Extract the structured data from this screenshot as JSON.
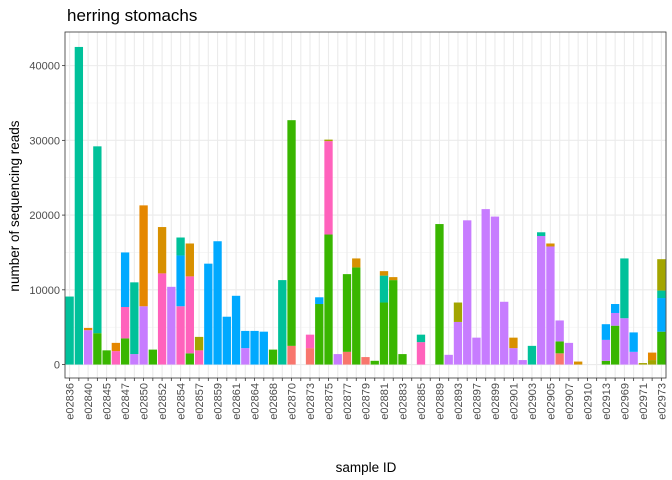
{
  "chart_data": {
    "type": "bar",
    "stacked": true,
    "title": "herring stomachs",
    "xlabel": "sample ID",
    "ylabel": "number  of sequencing reads",
    "ylim": [
      -1800,
      44500
    ],
    "yticks": [
      0,
      10000,
      20000,
      30000,
      40000
    ],
    "ytick_labels": [
      "0",
      "10000",
      "20000",
      "30000",
      "40000"
    ],
    "grid": true,
    "legend": "none",
    "categories": [
      "e02836",
      "e02837",
      "e02840",
      "e02844",
      "e02845",
      "e02846",
      "e02847",
      "e02849",
      "e02850",
      "e02851",
      "e02852",
      "e02853",
      "e02854",
      "e02855",
      "e02857",
      "e02858",
      "e02859",
      "e02860",
      "e02861",
      "e02863",
      "e02864",
      "e02865",
      "e02868",
      "e02869",
      "e02870",
      "e02872",
      "e02873",
      "e02874",
      "e02875",
      "e02876",
      "e02877",
      "e02878",
      "e02879",
      "e02880",
      "e02881",
      "e02882",
      "e02883",
      "e02884",
      "e02885",
      "e02888",
      "e02889",
      "e02892",
      "e02893",
      "e02895",
      "e02897",
      "e02898",
      "e02899",
      "e02900",
      "e02901",
      "e02902",
      "e02903",
      "e02904",
      "e02905",
      "e02906",
      "e02907",
      "e02909",
      "e02910",
      "e02911",
      "e02913",
      "e02914",
      "e02969",
      "e02970",
      "e02971",
      "e02972",
      "e02973"
    ],
    "x_tick_labels": [
      "e02836",
      "e02840",
      "e02845",
      "e02847",
      "e02850",
      "e02852",
      "e02854",
      "e02857",
      "e02859",
      "e02861",
      "e02864",
      "e02868",
      "e02870",
      "e02873",
      "e02875",
      "e02877",
      "e02879",
      "e02881",
      "e02883",
      "e02885",
      "e02889",
      "e02893",
      "e02897",
      "e02899",
      "e02901",
      "e02903",
      "e02905",
      "e02907",
      "e02910",
      "e02913",
      "e02969",
      "e02971",
      "e02973"
    ],
    "segment_order": [
      "salmon",
      "green",
      "pink",
      "purple",
      "blue",
      "teal",
      "olive",
      "orange",
      "mustard"
    ],
    "series": [
      {
        "color": "#F8766D",
        "values": [
          0,
          0,
          0,
          0,
          0,
          0,
          0,
          0,
          0,
          0,
          0,
          0,
          0,
          0,
          0,
          0,
          0,
          0,
          0,
          0,
          0,
          0,
          0,
          0,
          2500,
          0,
          2200,
          0,
          0,
          0,
          1700,
          0,
          1000,
          0,
          0,
          0,
          0,
          0,
          0,
          0,
          0,
          0,
          0,
          0,
          0,
          0,
          0,
          0,
          0,
          0,
          0,
          0,
          0,
          1500,
          0,
          0,
          0,
          0,
          0,
          0,
          0,
          0,
          0,
          0,
          0
        ]
      },
      {
        "color": "#39B600",
        "values": [
          0,
          0,
          0,
          4200,
          1900,
          0,
          3500,
          0,
          0,
          2000,
          0,
          0,
          0,
          1500,
          0,
          0,
          0,
          0,
          0,
          0,
          0,
          0,
          2000,
          0,
          30200,
          0,
          0,
          8100,
          17400,
          0,
          10400,
          13000,
          0,
          500,
          8300,
          11300,
          1400,
          0,
          0,
          0,
          18800,
          0,
          0,
          0,
          0,
          0,
          0,
          0,
          0,
          0,
          0,
          0,
          0,
          1600,
          0,
          0,
          0,
          0,
          500,
          5200,
          0,
          0,
          0,
          0,
          4400
        ]
      },
      {
        "color": "#FF62BC",
        "values": [
          0,
          0,
          0,
          0,
          0,
          1800,
          4200,
          0,
          0,
          0,
          12200,
          0,
          7800,
          10300,
          1900,
          0,
          0,
          0,
          0,
          0,
          0,
          0,
          0,
          0,
          0,
          0,
          1800,
          0,
          12500,
          0,
          0,
          0,
          0,
          0,
          0,
          0,
          0,
          0,
          3000,
          0,
          0,
          0,
          0,
          0,
          0,
          0,
          0,
          0,
          0,
          0,
          0,
          0,
          0,
          0,
          0,
          0,
          0,
          0,
          0,
          0,
          0,
          0,
          0,
          0,
          0
        ]
      },
      {
        "color": "#C77CFF",
        "values": [
          0,
          0,
          4600,
          0,
          0,
          0,
          0,
          1400,
          7800,
          0,
          0,
          10400,
          0,
          0,
          0,
          0,
          0,
          0,
          0,
          2200,
          0,
          0,
          0,
          0,
          0,
          0,
          0,
          0,
          0,
          1400,
          0,
          0,
          0,
          0,
          0,
          0,
          0,
          0,
          0,
          0,
          0,
          1300,
          5700,
          19300,
          3600,
          20800,
          19800,
          8400,
          2200,
          600,
          0,
          17200,
          15800,
          2800,
          2900,
          0,
          0,
          0,
          2800,
          1700,
          6200,
          1700,
          0,
          0,
          0
        ]
      },
      {
        "color": "#00A9FF",
        "values": [
          0,
          0,
          0,
          0,
          0,
          0,
          7300,
          0,
          0,
          0,
          0,
          0,
          6800,
          0,
          0,
          13500,
          16500,
          6400,
          9200,
          2300,
          4500,
          4400,
          0,
          0,
          0,
          0,
          0,
          900,
          0,
          0,
          0,
          0,
          0,
          0,
          0,
          0,
          0,
          0,
          0,
          0,
          0,
          0,
          0,
          0,
          0,
          0,
          0,
          0,
          0,
          0,
          0,
          0,
          0,
          0,
          0,
          0,
          0,
          0,
          2100,
          1200,
          0,
          2600,
          0,
          0,
          4500
        ]
      },
      {
        "color": "#00C19A",
        "values": [
          9100,
          42500,
          0,
          25000,
          0,
          0,
          0,
          9600,
          0,
          0,
          0,
          0,
          2400,
          0,
          0,
          0,
          0,
          0,
          0,
          0,
          0,
          0,
          0,
          11300,
          0,
          0,
          0,
          0,
          0,
          0,
          0,
          0,
          0,
          0,
          3600,
          0,
          0,
          0,
          1000,
          0,
          0,
          0,
          0,
          0,
          0,
          0,
          0,
          0,
          0,
          0,
          2500,
          500,
          0,
          0,
          0,
          0,
          0,
          0,
          0,
          0,
          8000,
          0,
          0,
          0,
          1000
        ]
      },
      {
        "color": "#A3A500",
        "values": [
          0,
          0,
          0,
          0,
          0,
          0,
          0,
          0,
          0,
          0,
          0,
          0,
          0,
          0,
          1800,
          0,
          0,
          0,
          0,
          0,
          0,
          0,
          0,
          0,
          0,
          0,
          0,
          0,
          200,
          0,
          0,
          0,
          0,
          0,
          0,
          0,
          0,
          0,
          0,
          0,
          0,
          0,
          2600,
          0,
          0,
          0,
          0,
          0,
          0,
          0,
          0,
          0,
          0,
          0,
          0,
          0,
          0,
          0,
          0,
          0,
          0,
          0,
          200,
          600,
          4200
        ]
      },
      {
        "color": "#E58700",
        "values": [
          0,
          0,
          300,
          0,
          0,
          1100,
          0,
          0,
          13500,
          0,
          0,
          0,
          0,
          0,
          0,
          0,
          0,
          0,
          0,
          0,
          0,
          0,
          0,
          0,
          0,
          0,
          0,
          0,
          0,
          0,
          0,
          0,
          0,
          0,
          0,
          0,
          0,
          0,
          0,
          0,
          0,
          0,
          0,
          0,
          0,
          0,
          0,
          0,
          0,
          0,
          0,
          0,
          0,
          0,
          0,
          0,
          0,
          0,
          0,
          0,
          0,
          0,
          0,
          1000,
          0
        ]
      },
      {
        "color": "#D89000",
        "values": [
          0,
          0,
          0,
          0,
          0,
          0,
          0,
          0,
          0,
          0,
          6200,
          0,
          0,
          4400,
          0,
          0,
          0,
          0,
          0,
          0,
          0,
          0,
          0,
          0,
          0,
          0,
          0,
          0,
          0,
          0,
          0,
          1200,
          0,
          0,
          600,
          400,
          0,
          0,
          0,
          0,
          0,
          0,
          0,
          0,
          0,
          0,
          0,
          0,
          1400,
          0,
          0,
          0,
          400,
          0,
          0,
          400,
          0,
          0,
          0,
          0,
          0,
          0,
          0,
          0,
          0
        ]
      }
    ]
  }
}
